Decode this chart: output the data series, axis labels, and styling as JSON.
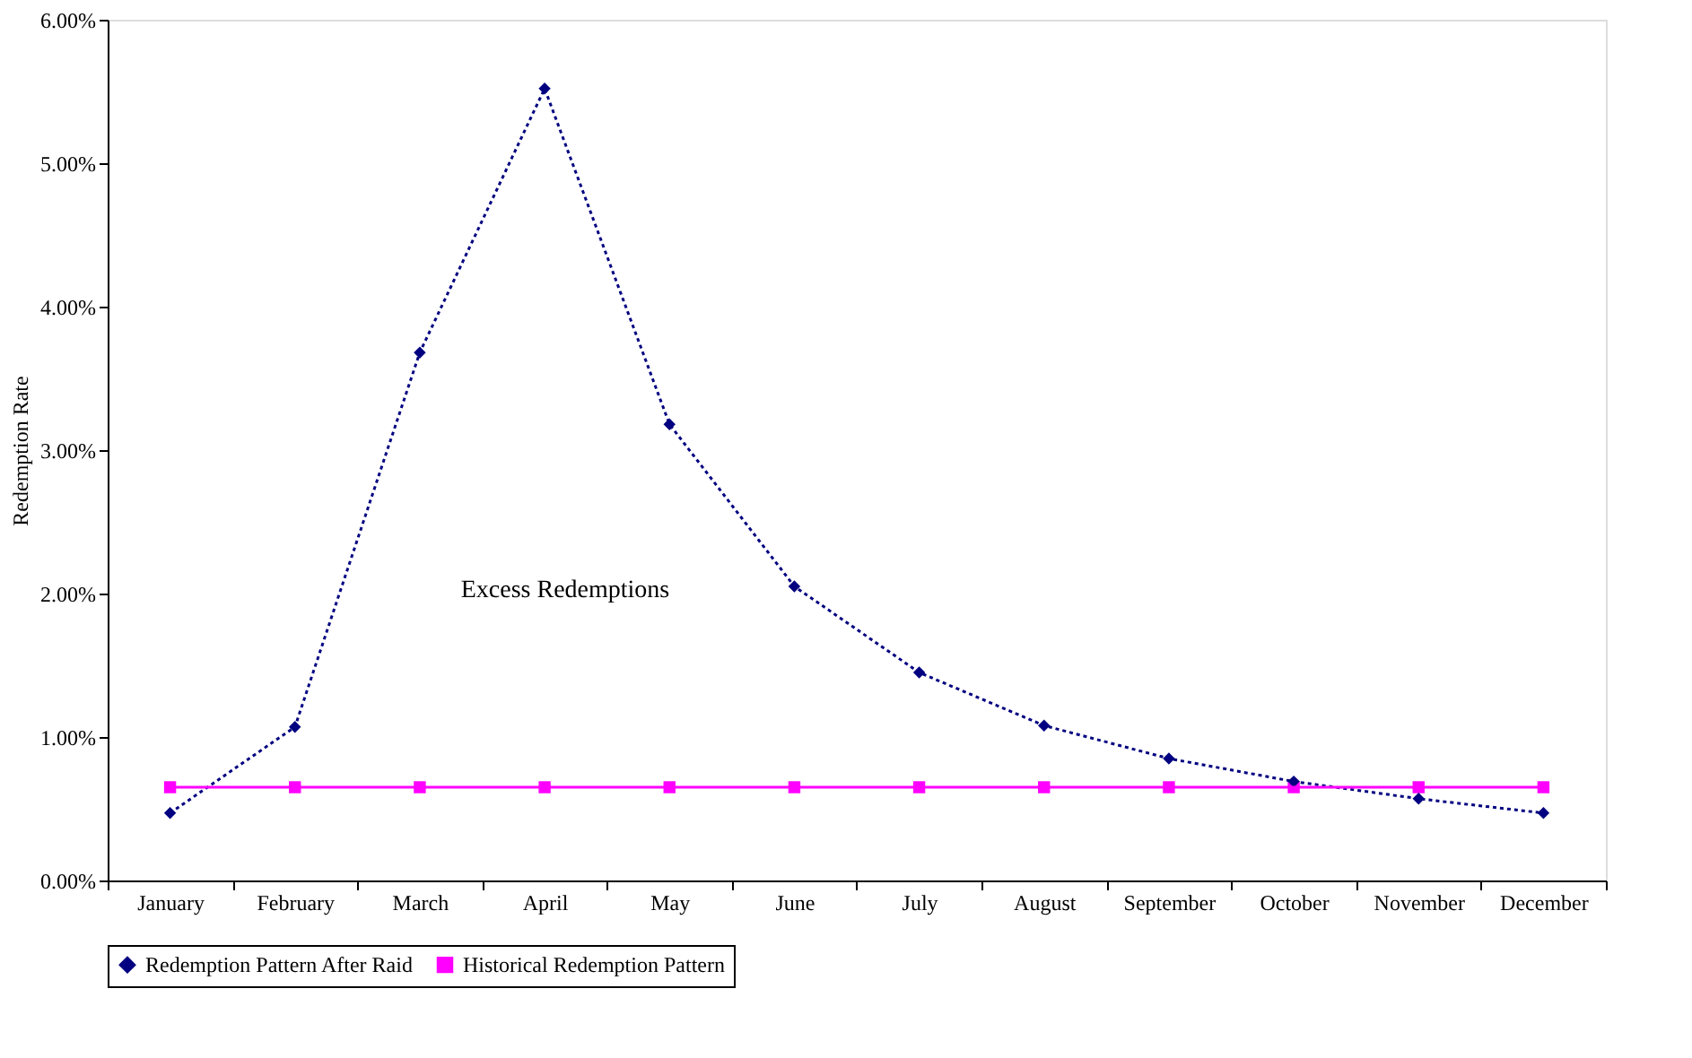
{
  "chart_data": {
    "type": "line",
    "ylabel": "Redemption Rate",
    "categories": [
      "January",
      "February",
      "March",
      "April",
      "May",
      "June",
      "July",
      "August",
      "September",
      "October",
      "November",
      "December"
    ],
    "series": [
      {
        "name": "Redemption Pattern After Raid",
        "color": "#000080",
        "marker": "diamond",
        "line_style": "dotted",
        "values": [
          0.47,
          1.07,
          3.68,
          5.52,
          3.18,
          2.05,
          1.45,
          1.08,
          0.85,
          0.69,
          0.57,
          0.47
        ]
      },
      {
        "name": "Historical Redemption Pattern",
        "color": "#ff00ff",
        "marker": "square",
        "line_style": "solid",
        "values": [
          0.65,
          0.65,
          0.65,
          0.65,
          0.65,
          0.65,
          0.65,
          0.65,
          0.65,
          0.65,
          0.65,
          0.65
        ]
      }
    ],
    "ylim": [
      0,
      6
    ],
    "yticks": [
      {
        "value": 0,
        "label": "0.00%"
      },
      {
        "value": 1,
        "label": "1.00%"
      },
      {
        "value": 2,
        "label": "2.00%"
      },
      {
        "value": 3,
        "label": "3.00%"
      },
      {
        "value": 4,
        "label": "4.00%"
      },
      {
        "value": 5,
        "label": "5.00%"
      },
      {
        "value": 6,
        "label": "6.00%"
      }
    ],
    "annotations": [
      "Excess Redemptions"
    ],
    "grid": false,
    "legend": "bottom"
  }
}
